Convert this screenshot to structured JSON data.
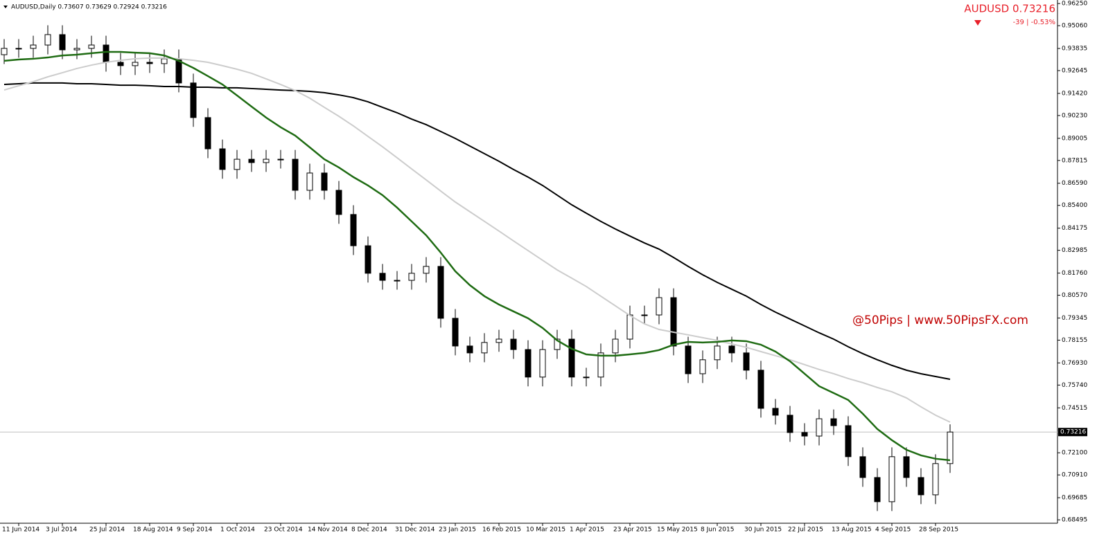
{
  "chart_data": {
    "type": "candlestick",
    "header": "AUDUSD,Daily  0.73607 0.73629 0.72924 0.73216",
    "symbol_text": "AUDUSD  0.73216",
    "change_text": "-39 | -0.53%",
    "watermark": "@50Pips | www.50PipsFX.com",
    "categories": [
      null,
      "11 Jun 2014",
      null,
      null,
      "3 Jul 2014",
      null,
      null,
      "25 Jul 2014",
      null,
      null,
      "18 Aug 2014",
      null,
      null,
      "9 Sep 2014",
      null,
      null,
      "1 Oct 2014",
      null,
      null,
      "23 Oct 2014",
      null,
      null,
      "14 Nov 2014",
      null,
      null,
      "8 Dec 2014",
      null,
      null,
      "31 Dec 2014",
      null,
      null,
      "23 Jan 2015",
      null,
      null,
      "16 Feb 2015",
      null,
      null,
      "10 Mar 2015",
      null,
      null,
      "1 Apr 2015",
      null,
      null,
      "23 Apr 2015",
      null,
      null,
      "15 May 2015",
      null,
      null,
      "8 Jun 2015",
      null,
      null,
      "30 Jun 2015",
      null,
      null,
      "22 Jul 2015",
      null,
      null,
      "13 Aug 2015",
      null,
      null,
      "4 Sep 2015",
      null,
      null,
      "28 Sep 2015",
      null
    ],
    "open": [
      0.935,
      0.9384,
      0.9384,
      0.9402,
      0.9458,
      0.9376,
      0.9384,
      0.9402,
      0.9309,
      0.9291,
      0.9309,
      0.9302,
      0.9328,
      0.9198,
      0.9012,
      0.8844,
      0.8733,
      0.8788,
      0.877,
      0.8788,
      0.8788,
      0.8621,
      0.8714,
      0.8621,
      0.8491,
      0.8323,
      0.8175,
      0.8137,
      0.8137,
      0.8175,
      0.8212,
      0.7933,
      0.7784,
      0.7747,
      0.7803,
      0.7821,
      0.7765,
      0.7617,
      0.7765,
      0.7821,
      0.7617,
      0.7617,
      0.7747,
      0.7821,
      0.7951,
      0.7951,
      0.8044,
      0.7784,
      0.7635,
      0.771,
      0.7784,
      0.7747,
      0.7654,
      0.7449,
      0.7412,
      0.7319,
      0.73,
      0.7393,
      0.7356,
      0.7189,
      0.7077,
      0.6947,
      0.7189,
      0.7077,
      0.6984,
      0.7152
    ],
    "high": [
      0.9434,
      0.9434,
      0.9452,
      0.9508,
      0.9508,
      0.9434,
      0.9452,
      0.9452,
      0.9359,
      0.9359,
      0.9359,
      0.9378,
      0.9378,
      0.9248,
      0.9062,
      0.8894,
      0.8838,
      0.8838,
      0.8838,
      0.8838,
      0.8838,
      0.8764,
      0.8764,
      0.8671,
      0.8541,
      0.8373,
      0.8225,
      0.8187,
      0.8225,
      0.8262,
      0.8262,
      0.7983,
      0.7834,
      0.7853,
      0.7871,
      0.7871,
      0.7815,
      0.7815,
      0.7871,
      0.7871,
      0.7667,
      0.7797,
      0.7871,
      0.8001,
      0.8001,
      0.8094,
      0.8094,
      0.7834,
      0.776,
      0.7834,
      0.7834,
      0.7797,
      0.7704,
      0.7499,
      0.7462,
      0.7369,
      0.7443,
      0.7443,
      0.7406,
      0.7239,
      0.7127,
      0.7239,
      0.7239,
      0.7127,
      0.7202,
      0.73629
    ],
    "low": [
      0.93,
      0.9334,
      0.9334,
      0.9352,
      0.9326,
      0.9326,
      0.9334,
      0.9259,
      0.9241,
      0.9241,
      0.9252,
      0.9252,
      0.9148,
      0.8962,
      0.8794,
      0.8683,
      0.8683,
      0.872,
      0.872,
      0.8738,
      0.8571,
      0.8571,
      0.8571,
      0.8441,
      0.8273,
      0.8125,
      0.8087,
      0.8087,
      0.8087,
      0.8125,
      0.7883,
      0.7734,
      0.7697,
      0.7697,
      0.7753,
      0.7715,
      0.7567,
      0.7567,
      0.7715,
      0.7567,
      0.7567,
      0.7567,
      0.7697,
      0.7771,
      0.7901,
      0.7901,
      0.7734,
      0.7585,
      0.7585,
      0.766,
      0.7697,
      0.7604,
      0.7399,
      0.7362,
      0.7269,
      0.725,
      0.725,
      0.7306,
      0.7139,
      0.7027,
      0.6897,
      0.6897,
      0.7027,
      0.6934,
      0.6934,
      0.7102
    ],
    "close": [
      0.9384,
      0.9384,
      0.9402,
      0.9458,
      0.9376,
      0.9384,
      0.9402,
      0.9309,
      0.9291,
      0.9309,
      0.9302,
      0.9328,
      0.9198,
      0.9012,
      0.8844,
      0.8733,
      0.8788,
      0.877,
      0.8788,
      0.8788,
      0.8621,
      0.8714,
      0.8621,
      0.8491,
      0.8323,
      0.8175,
      0.8137,
      0.8137,
      0.8175,
      0.8212,
      0.7933,
      0.7784,
      0.7747,
      0.7803,
      0.7821,
      0.7765,
      0.7617,
      0.7765,
      0.7821,
      0.7617,
      0.7617,
      0.7747,
      0.7821,
      0.7951,
      0.7951,
      0.8044,
      0.7784,
      0.7635,
      0.771,
      0.7784,
      0.7747,
      0.7654,
      0.7449,
      0.7412,
      0.7319,
      0.73,
      0.7393,
      0.7356,
      0.7189,
      0.7077,
      0.6947,
      0.7189,
      0.7077,
      0.6984,
      0.7152,
      0.73216
    ],
    "series": [
      {
        "color": "#000000",
        "values": [
          0.919,
          0.9194,
          0.9198,
          0.9198,
          0.9198,
          0.9194,
          0.9194,
          0.919,
          0.9186,
          0.9186,
          0.9183,
          0.9179,
          0.9179,
          0.9175,
          0.9175,
          0.9172,
          0.9172,
          0.9168,
          0.9164,
          0.916,
          0.9157,
          0.9153,
          0.9146,
          0.9134,
          0.9119,
          0.9097,
          0.9067,
          0.9038,
          0.9004,
          0.8974,
          0.8937,
          0.89,
          0.8859,
          0.8818,
          0.8777,
          0.8733,
          0.8692,
          0.8647,
          0.8595,
          0.8543,
          0.8498,
          0.8454,
          0.8413,
          0.8375,
          0.8338,
          0.8305,
          0.826,
          0.8212,
          0.8167,
          0.8126,
          0.8089,
          0.8052,
          0.8007,
          0.7966,
          0.7929,
          0.7892,
          0.7855,
          0.7821,
          0.778,
          0.7743,
          0.771,
          0.768,
          0.7654,
          0.7635,
          0.762,
          0.7605
        ]
      },
      {
        "color": "#cccccc",
        "values": [
          0.916,
          0.9183,
          0.9205,
          0.9231,
          0.9253,
          0.9276,
          0.9294,
          0.9309,
          0.932,
          0.9328,
          0.9332,
          0.9332,
          0.9328,
          0.932,
          0.9309,
          0.9291,
          0.9272,
          0.925,
          0.922,
          0.919,
          0.9157,
          0.9116,
          0.9067,
          0.9019,
          0.8967,
          0.8911,
          0.8855,
          0.8796,
          0.8736,
          0.8677,
          0.8617,
          0.8558,
          0.8506,
          0.8454,
          0.8402,
          0.8349,
          0.8297,
          0.8245,
          0.8193,
          0.8149,
          0.8104,
          0.8052,
          0.8,
          0.7948,
          0.7903,
          0.7873,
          0.7858,
          0.7844,
          0.7829,
          0.7814,
          0.7795,
          0.7777,
          0.7754,
          0.7732,
          0.771,
          0.7684,
          0.7658,
          0.7635,
          0.7609,
          0.7587,
          0.7561,
          0.7538,
          0.7505,
          0.7457,
          0.7412,
          0.7375
        ]
      },
      {
        "color": "#1e6b12",
        "values": [
          0.9317,
          0.9324,
          0.9328,
          0.9335,
          0.9346,
          0.935,
          0.9358,
          0.9365,
          0.9365,
          0.9361,
          0.9358,
          0.9346,
          0.9317,
          0.9279,
          0.9235,
          0.919,
          0.9131,
          0.9071,
          0.9012,
          0.896,
          0.8915,
          0.8852,
          0.8788,
          0.8744,
          0.8692,
          0.8647,
          0.8595,
          0.8528,
          0.8454,
          0.8379,
          0.8286,
          0.8186,
          0.8111,
          0.8052,
          0.8007,
          0.797,
          0.7933,
          0.7881,
          0.7814,
          0.7769,
          0.7739,
          0.7732,
          0.7732,
          0.7739,
          0.7747,
          0.7762,
          0.7791,
          0.7806,
          0.7803,
          0.7806,
          0.7814,
          0.781,
          0.7791,
          0.7754,
          0.7702,
          0.7635,
          0.7568,
          0.7531,
          0.7494,
          0.742,
          0.7338,
          0.7278,
          0.7226,
          0.7196,
          0.7178,
          0.717
        ]
      }
    ],
    "current_price": {
      "value": 0.73216,
      "label": "0.73216"
    },
    "ylim": [
      0.6835,
      0.9644
    ],
    "yticks": [
      {
        "value": 0.9625,
        "label": "0.96250"
      },
      {
        "value": 0.9506,
        "label": "0.95060"
      },
      {
        "value": 0.93835,
        "label": "0.93835"
      },
      {
        "value": 0.92645,
        "label": "0.92645"
      },
      {
        "value": 0.9142,
        "label": "0.91420"
      },
      {
        "value": 0.9023,
        "label": "0.90230"
      },
      {
        "value": 0.89005,
        "label": "0.89005"
      },
      {
        "value": 0.87815,
        "label": "0.87815"
      },
      {
        "value": 0.8659,
        "label": "0.86590"
      },
      {
        "value": 0.854,
        "label": "0.85400"
      },
      {
        "value": 0.84175,
        "label": "0.84175"
      },
      {
        "value": 0.82985,
        "label": "0.82985"
      },
      {
        "value": 0.8176,
        "label": "0.81760"
      },
      {
        "value": 0.8057,
        "label": "0.80570"
      },
      {
        "value": 0.79345,
        "label": "0.79345"
      },
      {
        "value": 0.78155,
        "label": "0.78155"
      },
      {
        "value": 0.7693,
        "label": "0.76930"
      },
      {
        "value": 0.7574,
        "label": "0.75740"
      },
      {
        "value": 0.74515,
        "label": "0.74515"
      },
      {
        "value": 0.721,
        "label": "0.72100"
      },
      {
        "value": 0.7091,
        "label": "0.70910"
      },
      {
        "value": 0.69685,
        "label": "0.69685"
      },
      {
        "value": 0.68495,
        "label": "0.68495"
      }
    ],
    "up_color": "#ffffff",
    "down_color": "#000000"
  }
}
